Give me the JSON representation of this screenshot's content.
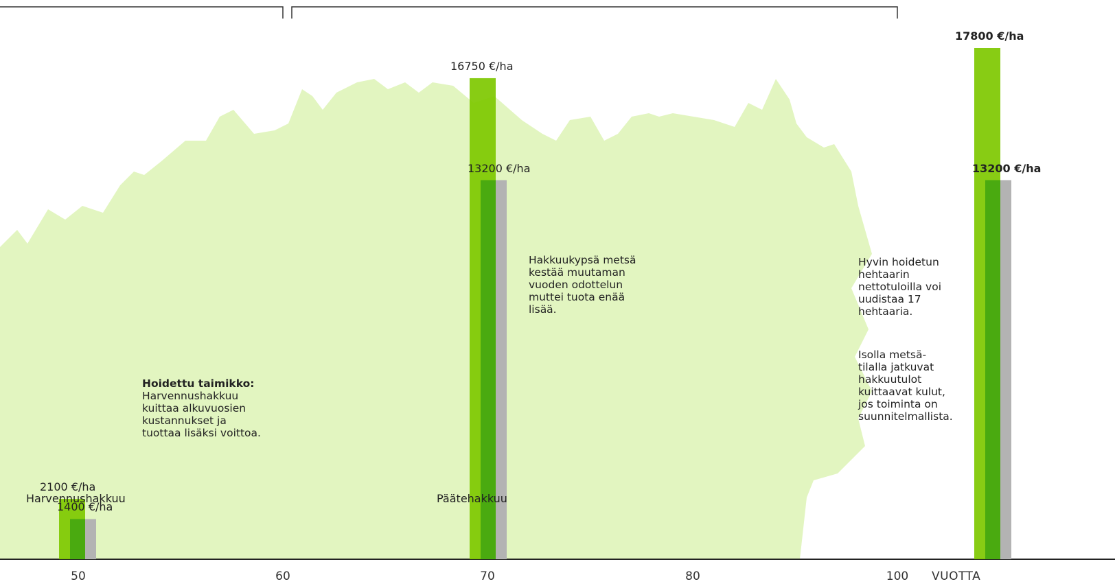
{
  "chart_data": {
    "type": "bar",
    "xlabel": "VUOTTA",
    "x_ticks": [
      "50",
      "60",
      "70",
      "80",
      "100"
    ],
    "series_colors": {
      "revenue": "#7ec800",
      "net": "#4aaa10",
      "cost_overlay": "#b3b3b3",
      "forest": "#e2f5c0"
    },
    "groups": [
      {
        "x": 50,
        "revenue": 2100,
        "net": 1400,
        "revenue_label": "2100 €/ha",
        "net_label": "1400 €/ha",
        "name": "Harvennushakkuu"
      },
      {
        "x": 70,
        "revenue": 16750,
        "net": 13200,
        "revenue_label": "16750 €/ha",
        "net_label": "13200 €/ha",
        "name": "Päätehakkuu"
      },
      {
        "x": "total",
        "revenue": 17800,
        "net": 13200,
        "revenue_label": "17800 €/ha",
        "net_label": "13200 €/ha",
        "name": ""
      }
    ],
    "annotations": {
      "taimikko_title": "Hoidettu taimikko:",
      "taimikko_text": "Harvennushakkuu\nkuittaa alkuvuosien\nkustannukset ja\ntuottaa lisäksi voittoa.",
      "hakkuukypsa_text": "Hakkuukypsä metsä\nkestää muutaman\nvuoden odottelun\nmuttei tuota enää\nlisää.",
      "hehtaari_text": "Hyvin hoidetun\nhehtaarin\nnettotuloilla voi\nuudistaa 17\nhehtaaria.",
      "metsatila_text": "Isolla metsä-\ntilalla jatkuvat\nhakkuutulot\nkuittaavat kulut,\njos toiminta on\nsuunnitelmallista."
    }
  }
}
